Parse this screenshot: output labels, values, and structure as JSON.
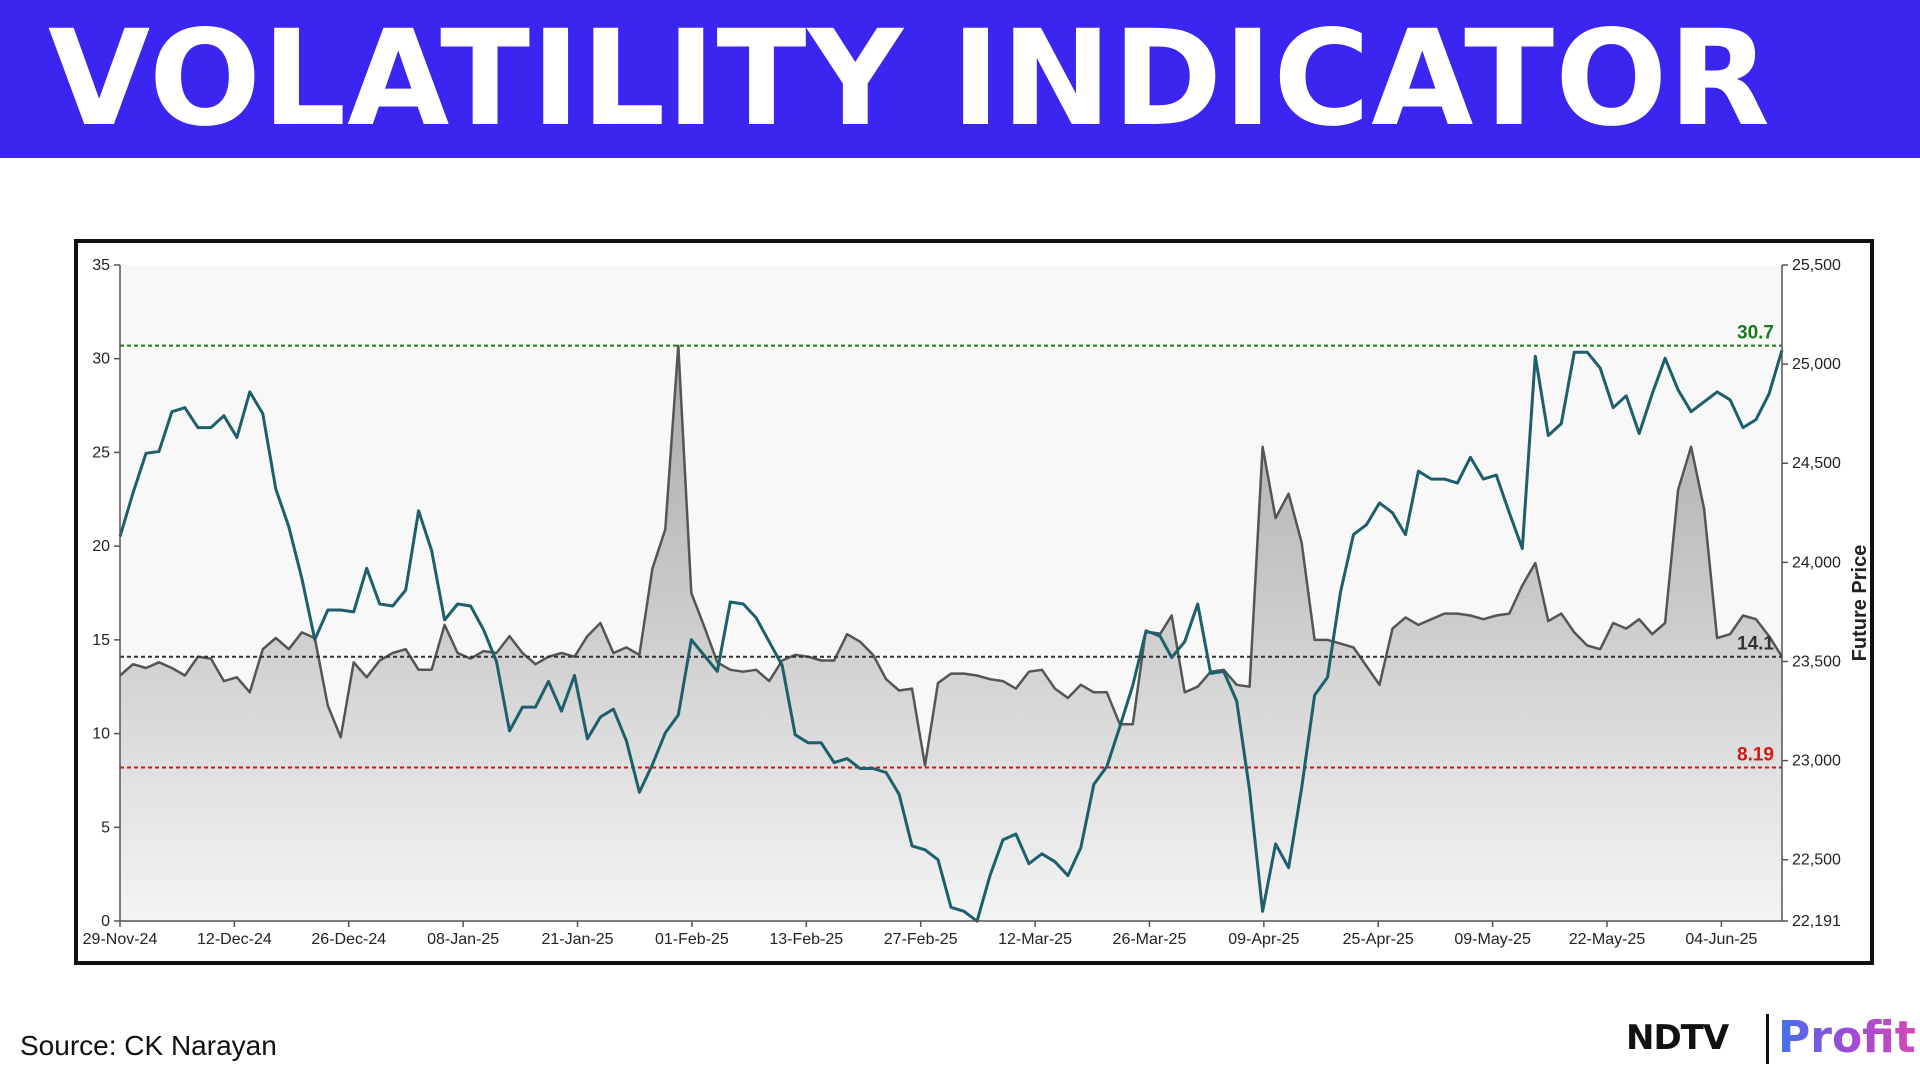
{
  "banner": {
    "title": "VOLATILITY INDICATOR"
  },
  "footer": {
    "source": "Source: CK Narayan",
    "logo_ndtv": "NDTV",
    "logo_profit": "Profit"
  },
  "colors": {
    "banner": "#3a26f0",
    "volatility_line": "#555555",
    "volatility_fill": "#bdbdbd",
    "price_line": "#1d5f6b",
    "upper_level": "#1a7a1a",
    "lower_level": "#d01818",
    "mean_level": "#333333"
  },
  "chart_data": {
    "type": "line",
    "left_axis": {
      "range": [
        0,
        35
      ],
      "ticks": [
        "35",
        "30",
        "25",
        "20",
        "15",
        "10",
        "5",
        "0"
      ]
    },
    "right_axis": {
      "label": "Future Price",
      "range": [
        22191,
        25500
      ],
      "ticks": [
        {
          "value": 25500,
          "label": "25,500"
        },
        {
          "value": 25000,
          "label": "25,000"
        },
        {
          "value": 24500,
          "label": "24,500"
        },
        {
          "value": 24000,
          "label": "24,000"
        },
        {
          "value": 23500,
          "label": "23,500"
        },
        {
          "value": 23000,
          "label": "23,000"
        },
        {
          "value": 22500,
          "label": "22,500"
        },
        {
          "value": 22191,
          "label": "22,191"
        }
      ]
    },
    "x_ticks": [
      "29-Nov-24",
      "12-Dec-24",
      "26-Dec-24",
      "08-Jan-25",
      "21-Jan-25",
      "01-Feb-25",
      "13-Feb-25",
      "27-Feb-25",
      "12-Mar-25",
      "26-Mar-25",
      "09-Apr-25",
      "25-Apr-25",
      "09-May-25",
      "22-May-25",
      "04-Jun-25"
    ],
    "levels": [
      {
        "value": 30.7,
        "label": "30.7",
        "color": "#1a7a1a"
      },
      {
        "value": 14.1,
        "label": "14.1",
        "color": "#333333"
      },
      {
        "value": 8.19,
        "label": "8.19",
        "color": "#d01818"
      }
    ],
    "grid": false,
    "series": [
      {
        "kind": "area",
        "axis": "left",
        "values": [
          13.1,
          13.7,
          13.5,
          13.8,
          13.5,
          13.1,
          14.1,
          14.0,
          12.8,
          13.0,
          12.2,
          14.5,
          15.1,
          14.5,
          15.4,
          15.1,
          11.5,
          9.8,
          13.8,
          13.0,
          13.9,
          14.3,
          14.5,
          13.4,
          13.4,
          15.8,
          14.3,
          14.0,
          14.4,
          14.3,
          15.2,
          14.3,
          13.7,
          14.1,
          14.3,
          14.1,
          15.2,
          15.9,
          14.3,
          14.6,
          14.2,
          18.8,
          20.9,
          30.7,
          17.5,
          15.7,
          13.8,
          13.4,
          13.3,
          13.4,
          12.8,
          13.9,
          14.2,
          14.1,
          13.9,
          13.9,
          15.3,
          14.9,
          14.2,
          12.9,
          12.3,
          12.4,
          8.3,
          12.7,
          13.2,
          13.2,
          13.1,
          12.9,
          12.8,
          12.4,
          13.3,
          13.4,
          12.4,
          11.9,
          12.6,
          12.2,
          12.2,
          10.5,
          10.5,
          15.5,
          15.2,
          16.3,
          12.2,
          12.5,
          13.3,
          13.4,
          12.6,
          12.5,
          25.3,
          21.5,
          22.8,
          20.2,
          15.0,
          15.0,
          14.8,
          14.6,
          13.6,
          12.6,
          15.6,
          16.2,
          15.8,
          16.1,
          16.4,
          16.4,
          16.3,
          16.1,
          16.3,
          16.4,
          17.9,
          19.1,
          16.0,
          16.4,
          15.4,
          14.7,
          14.5,
          15.9,
          15.6,
          16.1,
          15.3,
          15.9,
          23.0,
          25.3,
          22.0,
          15.1,
          15.3,
          16.3,
          16.1,
          15.2,
          14.1
        ]
      },
      {
        "kind": "line",
        "axis": "right",
        "name": "Future Price",
        "values": [
          24130,
          24350,
          24550,
          24560,
          24760,
          24780,
          24680,
          24680,
          24740,
          24630,
          24860,
          24750,
          24370,
          24180,
          23920,
          23610,
          23760,
          23760,
          23750,
          23970,
          23790,
          23780,
          23860,
          24260,
          24060,
          23710,
          23790,
          23780,
          23660,
          23500,
          23150,
          23270,
          23270,
          23400,
          23250,
          23430,
          23110,
          23220,
          23260,
          23100,
          22840,
          22980,
          23140,
          23230,
          23610,
          23530,
          23450,
          23800,
          23790,
          23720,
          23600,
          23480,
          23130,
          23090,
          23090,
          22990,
          23010,
          22960,
          22960,
          22940,
          22830,
          22570,
          22550,
          22500,
          22260,
          22240,
          22190,
          22420,
          22600,
          22630,
          22480,
          22530,
          22490,
          22420,
          22560,
          22880,
          22970,
          23170,
          23380,
          23650,
          23640,
          23520,
          23600,
          23790,
          23440,
          23450,
          23300,
          22850,
          22240,
          22580,
          22460,
          22860,
          23330,
          23420,
          23850,
          24140,
          24190,
          24300,
          24250,
          24140,
          24460,
          24420,
          24420,
          24400,
          24530,
          24420,
          24440,
          24250,
          24070,
          25040,
          24640,
          24700,
          25060,
          25060,
          24980,
          24780,
          24840,
          24650,
          24850,
          25030,
          24870,
          24760,
          24810,
          24860,
          24820,
          24680,
          24720,
          24850,
          25070
        ]
      }
    ]
  }
}
